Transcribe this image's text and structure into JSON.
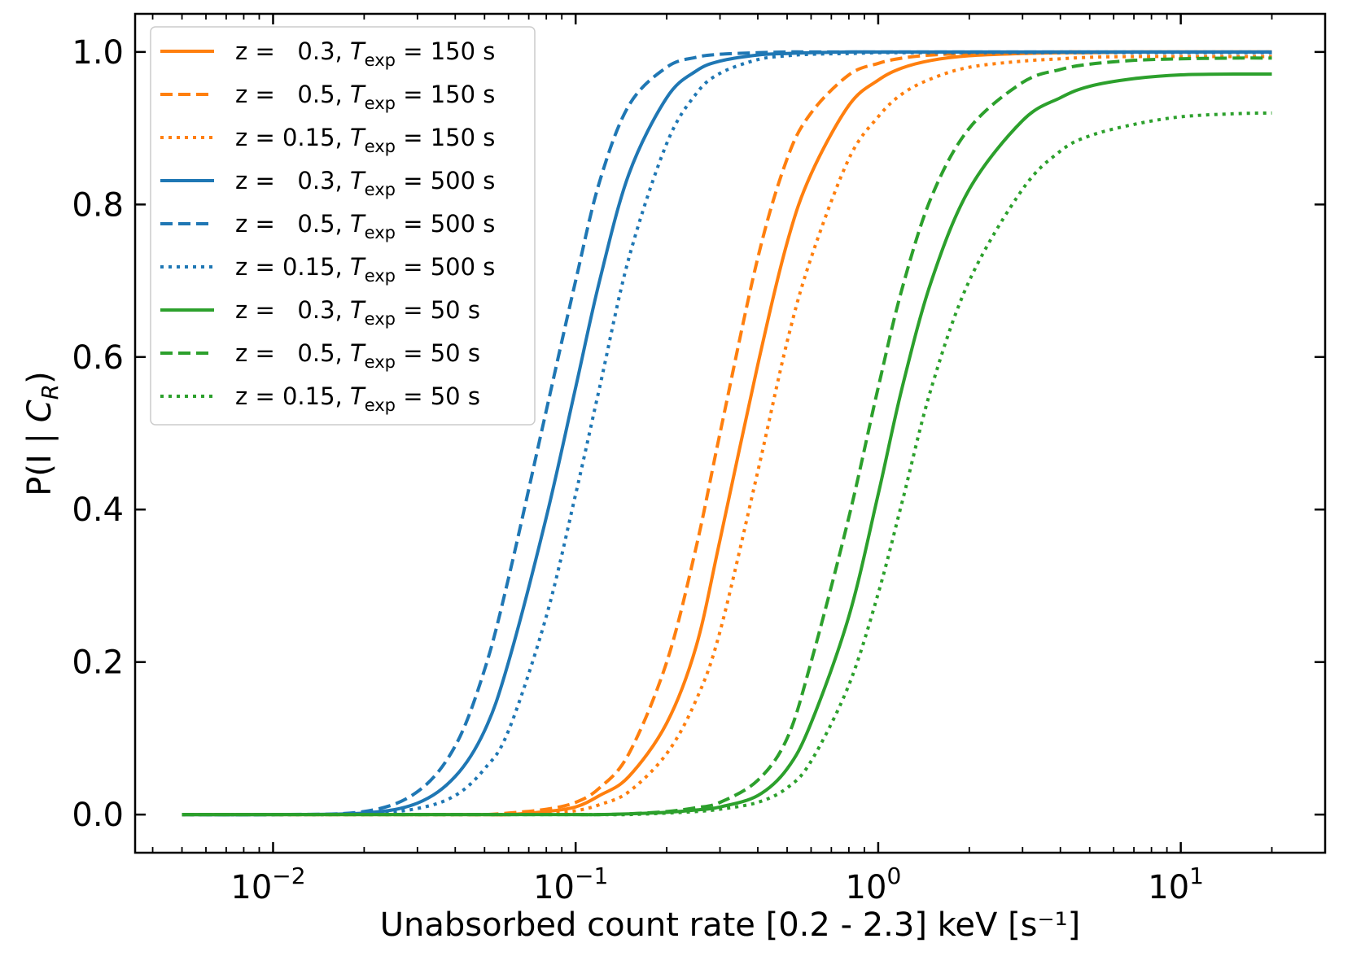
{
  "chart_data": {
    "type": "line",
    "title": "",
    "xlabel": "Unabsorbed count rate [0.2 - 2.3] keV [s⁻¹]",
    "ylabel": "P(I | C_R)",
    "xscale": "log",
    "xlim": [
      0.0035,
      30
    ],
    "ylim": [
      -0.05,
      1.05
    ],
    "yticks": [
      0.0,
      0.2,
      0.4,
      0.6,
      0.8,
      1.0
    ],
    "ytick_labels": [
      "0.0",
      "0.2",
      "0.4",
      "0.6",
      "0.8",
      "1.0"
    ],
    "xticks": [
      0.01,
      0.1,
      1,
      10
    ],
    "xtick_bases": [
      "10",
      "10",
      "10",
      "10"
    ],
    "xtick_exponents": [
      "−2",
      "−1",
      "0",
      "1"
    ],
    "grid": false,
    "legend_position": "upper-left",
    "colors": {
      "orange": "#ff7f0e",
      "blue": "#1f77b4",
      "green": "#2ca02c"
    },
    "x_points": [
      0.005,
      0.01,
      0.02,
      0.03,
      0.04,
      0.05,
      0.06,
      0.08,
      0.1,
      0.12,
      0.15,
      0.2,
      0.25,
      0.3,
      0.4,
      0.5,
      0.6,
      0.8,
      1.0,
      1.2,
      1.5,
      2.0,
      3.0,
      4.0,
      5.0,
      7.0,
      10.0,
      15.0,
      20.0
    ],
    "series": [
      {
        "name": "z =   0.3, T_exp = 150 s",
        "z_label": "z =   0.3, ",
        "texp": "150 s",
        "color": "#ff7f0e",
        "dash": "solid",
        "values": [
          0,
          0,
          0,
          0,
          0,
          0,
          0,
          0.004,
          0.01,
          0.025,
          0.05,
          0.12,
          0.22,
          0.36,
          0.59,
          0.75,
          0.84,
          0.93,
          0.963,
          0.979,
          0.989,
          0.995,
          0.998,
          0.999,
          0.999,
          1.0,
          1.0,
          1.0,
          1.0
        ]
      },
      {
        "name": "z =   0.5, T_exp = 150 s",
        "z_label": "z =   0.5, ",
        "texp": "150 s",
        "color": "#ff7f0e",
        "dash": "dashed",
        "values": [
          0,
          0,
          0,
          0,
          0,
          0,
          0.002,
          0.007,
          0.016,
          0.035,
          0.08,
          0.2,
          0.35,
          0.5,
          0.73,
          0.86,
          0.92,
          0.97,
          0.985,
          0.992,
          0.996,
          0.998,
          0.999,
          1.0,
          1.0,
          1.0,
          1.0,
          1.0,
          1.0
        ]
      },
      {
        "name": "z = 0.15, T_exp = 150 s",
        "z_label": "z = 0.15, ",
        "texp": "150 s",
        "color": "#ff7f0e",
        "dash": "dotted",
        "values": [
          0,
          0,
          0,
          0,
          0,
          0,
          0,
          0.002,
          0.005,
          0.013,
          0.03,
          0.08,
          0.15,
          0.24,
          0.45,
          0.62,
          0.73,
          0.86,
          0.915,
          0.945,
          0.965,
          0.98,
          0.988,
          0.991,
          0.993,
          0.994,
          0.994,
          0.994,
          0.994
        ]
      },
      {
        "name": "z =   0.3, T_exp = 500 s",
        "z_label": "z =   0.3, ",
        "texp": "500 s",
        "color": "#1f77b4",
        "dash": "solid",
        "values": [
          0,
          0,
          0.002,
          0.015,
          0.05,
          0.11,
          0.2,
          0.39,
          0.56,
          0.7,
          0.84,
          0.94,
          0.975,
          0.988,
          0.996,
          0.998,
          0.999,
          1.0,
          1.0,
          1.0,
          1.0,
          1.0,
          1.0,
          1.0,
          1.0,
          1.0,
          1.0,
          1.0,
          1.0
        ]
      },
      {
        "name": "z =   0.5, T_exp = 500 s",
        "z_label": "z =   0.5, ",
        "texp": "500 s",
        "color": "#1f77b4",
        "dash": "dashed",
        "values": [
          0,
          0,
          0.004,
          0.03,
          0.09,
          0.19,
          0.31,
          0.53,
          0.7,
          0.83,
          0.93,
          0.98,
          0.993,
          0.997,
          0.999,
          1.0,
          1.0,
          1.0,
          1.0,
          1.0,
          1.0,
          1.0,
          1.0,
          1.0,
          1.0,
          1.0,
          1.0,
          1.0,
          1.0
        ]
      },
      {
        "name": "z = 0.15, T_exp = 500 s",
        "z_label": "z = 0.15, ",
        "texp": "500 s",
        "color": "#1f77b4",
        "dash": "dotted",
        "values": [
          0,
          0,
          0.001,
          0.008,
          0.025,
          0.06,
          0.11,
          0.26,
          0.42,
          0.56,
          0.73,
          0.88,
          0.945,
          0.972,
          0.99,
          0.995,
          0.997,
          0.998,
          0.999,
          0.999,
          0.999,
          0.999,
          0.999,
          0.999,
          0.999,
          0.999,
          0.999,
          0.999,
          0.999
        ]
      },
      {
        "name": "z =   0.3, T_exp = 50 s",
        "z_label": "z =   0.3, ",
        "texp": "50 s",
        "color": "#2ca02c",
        "dash": "solid",
        "values": [
          0,
          0,
          0,
          0,
          0,
          0,
          0,
          0,
          0,
          0,
          0.001,
          0.003,
          0.006,
          0.01,
          0.025,
          0.06,
          0.12,
          0.26,
          0.42,
          0.56,
          0.7,
          0.82,
          0.91,
          0.94,
          0.955,
          0.965,
          0.97,
          0.971,
          0.971
        ]
      },
      {
        "name": "z =   0.5, T_exp = 50 s",
        "z_label": "z =   0.5, ",
        "texp": "50 s",
        "color": "#2ca02c",
        "dash": "dashed",
        "values": [
          0,
          0,
          0,
          0,
          0,
          0,
          0,
          0,
          0,
          0,
          0.001,
          0.004,
          0.009,
          0.016,
          0.045,
          0.1,
          0.2,
          0.39,
          0.56,
          0.69,
          0.81,
          0.9,
          0.96,
          0.977,
          0.984,
          0.989,
          0.991,
          0.992,
          0.992
        ]
      },
      {
        "name": "z = 0.15, T_exp = 50 s",
        "z_label": "z = 0.15, ",
        "texp": "50 s",
        "color": "#2ca02c",
        "dash": "dotted",
        "values": [
          0,
          0,
          0,
          0,
          0,
          0,
          0,
          0,
          0,
          0,
          0,
          0.002,
          0.004,
          0.007,
          0.016,
          0.035,
          0.07,
          0.17,
          0.29,
          0.41,
          0.56,
          0.7,
          0.82,
          0.87,
          0.89,
          0.905,
          0.915,
          0.919,
          0.92
        ]
      }
    ]
  }
}
